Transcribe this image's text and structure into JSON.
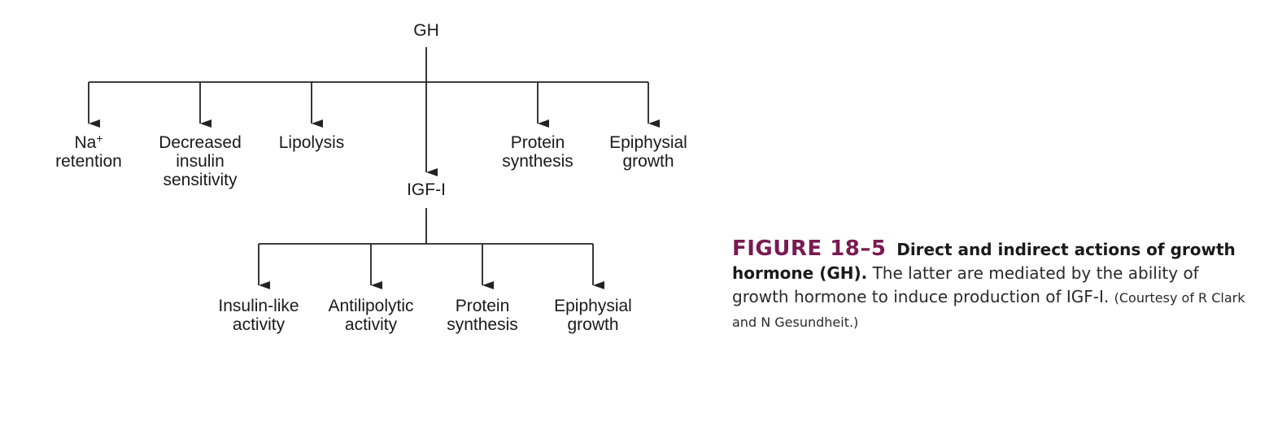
{
  "nodes": {
    "gh": "GH",
    "igf": "IGF-I",
    "na_main": "Na",
    "na_sup": "+",
    "na_sub": "retention",
    "decreased_insulin": [
      "Decreased",
      "insulin",
      "sensitivity"
    ],
    "lipolysis": "Lipolysis",
    "protein_synthesis_gh": [
      "Protein",
      "synthesis"
    ],
    "epiphysial_growth_gh": [
      "Epiphysial",
      "growth"
    ],
    "insulin_like": [
      "Insulin-like",
      "activity"
    ],
    "antilipolytic": [
      "Antilipolytic",
      "activity"
    ],
    "protein_synthesis_igf": [
      "Protein",
      "synthesis"
    ],
    "epiphysial_growth_igf": [
      "Epiphysial",
      "growth"
    ]
  },
  "caption": {
    "label": "FIGURE 18–5",
    "title": "Direct and indirect actions of growth hormone (GH).",
    "body": "The latter are mediated by the ability of growth hormone to induce production of IGF-I.",
    "credit": "(Courtesy of R Clark and N Gesundheit.)"
  },
  "colors": {
    "line": "#222222",
    "label": "#7a1a52"
  }
}
